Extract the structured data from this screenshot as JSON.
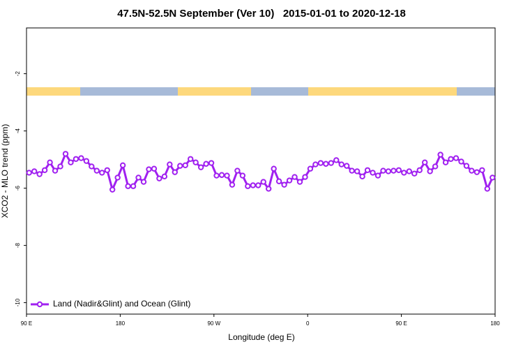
{
  "chart_data": {
    "type": "line",
    "title": "47.5N-52.5N September (Ver 10)   2015-01-01 to 2020-12-18",
    "x_label": "Longitude (deg E)",
    "y_label": "XCO2 - MLO trend (ppm)",
    "xlim": [
      90,
      540
    ],
    "ylim": [
      -10.4,
      -0.4
    ],
    "xticks": [
      {
        "value": 90,
        "label": "90 E"
      },
      180,
      {
        "value": 270,
        "label": "90 W"
      },
      {
        "value": 360,
        "label": "0"
      },
      {
        "value": 450,
        "label": "90 E"
      },
      {
        "value": 540,
        "label": "180"
      }
    ],
    "yticks": [
      -10,
      -8,
      -6,
      -4,
      -2
    ],
    "legend": "bottom left",
    "x": [
      92.5,
      97.5,
      102.5,
      107.5,
      112.5,
      117.5,
      122.5,
      127.5,
      132.5,
      137.5,
      142.5,
      147.5,
      152.5,
      157.5,
      162.5,
      167.5,
      172.5,
      177.5,
      182.5,
      187.5,
      192.5,
      197.5,
      202.5,
      207.5,
      212.5,
      217.5,
      222.5,
      227.5,
      232.5,
      237.5,
      242.5,
      247.5,
      252.5,
      257.5,
      262.5,
      267.5,
      272.5,
      277.5,
      282.5,
      287.5,
      292.5,
      297.5,
      302.5,
      307.5,
      312.5,
      317.5,
      322.5,
      327.5,
      332.5,
      337.5,
      342.5,
      347.5,
      352.5,
      357.5,
      362.5,
      367.5,
      372.5,
      377.5,
      382.5,
      387.5,
      392.5,
      397.5,
      402.5,
      407.5,
      412.5,
      417.5,
      422.5,
      427.5,
      432.5,
      437.5,
      442.5,
      447.5,
      452.5,
      457.5,
      462.5,
      467.5,
      472.5,
      477.5,
      482.5,
      487.5,
      492.5,
      497.5,
      502.5,
      507.5,
      512.5,
      517.5,
      522.5,
      527.5,
      532.5,
      537.5
    ],
    "series": [
      {
        "name": "Land (Nadir&Glint) and Ocean (Glint)",
        "color": "#a020f0",
        "values": [
          -5.46,
          -5.41,
          -5.51,
          -5.37,
          -5.1,
          -5.39,
          -5.24,
          -4.8,
          -5.1,
          -4.98,
          -4.95,
          -5.05,
          -5.24,
          -5.39,
          -5.46,
          -5.37,
          -6.05,
          -5.63,
          -5.2,
          -5.93,
          -5.93,
          -5.63,
          -5.78,
          -5.34,
          -5.32,
          -5.66,
          -5.59,
          -5.17,
          -5.44,
          -5.22,
          -5.2,
          -4.98,
          -5.1,
          -5.27,
          -5.15,
          -5.12,
          -5.56,
          -5.54,
          -5.56,
          -5.88,
          -5.39,
          -5.56,
          -5.93,
          -5.9,
          -5.9,
          -5.78,
          -6.02,
          -5.32,
          -5.76,
          -5.88,
          -5.73,
          -5.61,
          -5.78,
          -5.61,
          -5.32,
          -5.17,
          -5.12,
          -5.15,
          -5.12,
          -5.02,
          -5.17,
          -5.22,
          -5.39,
          -5.41,
          -5.59,
          -5.37,
          -5.46,
          -5.56,
          -5.39,
          -5.41,
          -5.39,
          -5.37,
          -5.46,
          -5.41,
          -5.49,
          -5.37,
          -5.1,
          -5.41,
          -5.24,
          -4.83,
          -5.1,
          -4.98,
          -4.95,
          -5.07,
          -5.22,
          -5.39,
          -5.44,
          -5.37,
          -6.02,
          -5.63
        ]
      }
    ]
  }
}
